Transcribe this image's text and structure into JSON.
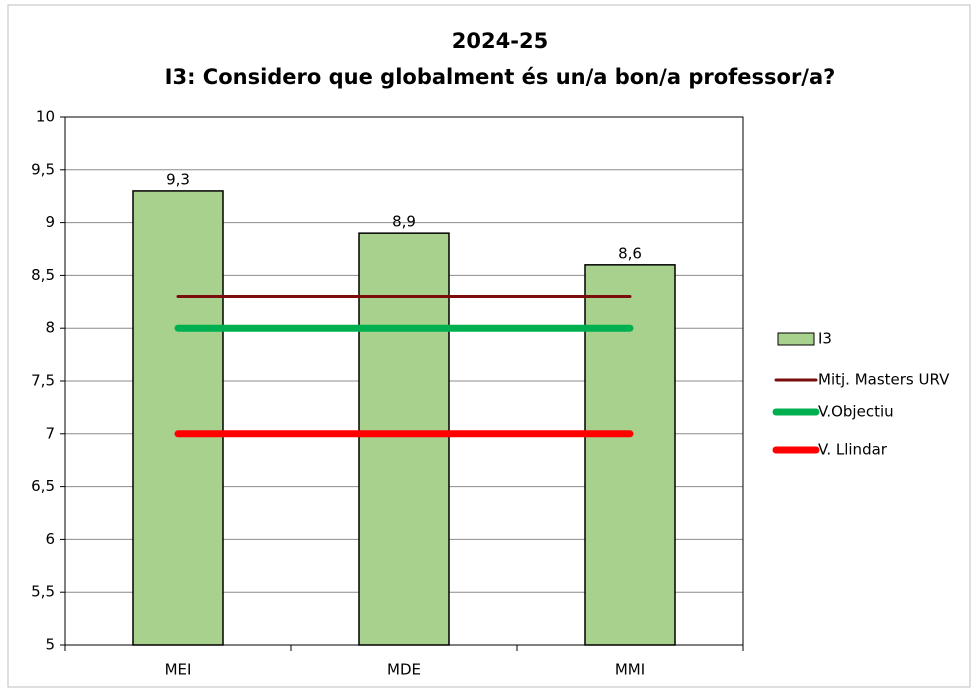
{
  "chart_data": {
    "type": "bar",
    "title": "2024-25",
    "subtitle": "I3: Considero que globalment és un/a bon/a professor/a?",
    "categories": [
      "MEI",
      "MDE",
      "MMI"
    ],
    "series": [
      {
        "name": "I3",
        "type": "bar",
        "color": "#a9d18e",
        "values": [
          9.3,
          8.9,
          8.6
        ],
        "value_labels": [
          "9,3",
          "8,9",
          "8,6"
        ]
      },
      {
        "name": "Mitj. Masters URV",
        "type": "line",
        "color": "#7b0c0c",
        "values": [
          8.3,
          8.3,
          8.3
        ]
      },
      {
        "name": "V.Objectiu",
        "type": "line",
        "color": "#00b050",
        "values": [
          8,
          8,
          8
        ]
      },
      {
        "name": "V. Llindar",
        "type": "line",
        "color": "#ff0000",
        "values": [
          7,
          7,
          7
        ]
      }
    ],
    "ylim": [
      5,
      10
    ],
    "yticks": [
      5,
      {
        "value": 5.5,
        "label": "5,5"
      },
      6,
      {
        "value": 6.5,
        "label": "6,5"
      },
      7,
      {
        "value": 7.5,
        "label": "7,5"
      },
      8,
      {
        "value": 8.5,
        "label": "8,5"
      },
      9,
      {
        "value": 9.5,
        "label": "9,5"
      },
      10
    ],
    "grid": true,
    "legend": "right"
  }
}
